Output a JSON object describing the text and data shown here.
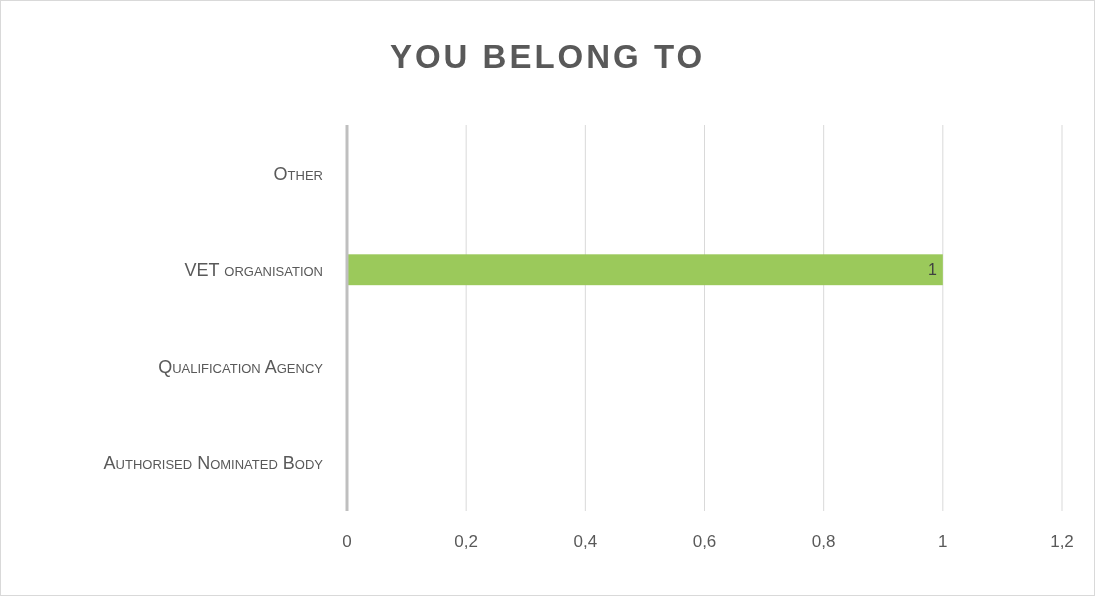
{
  "chart_data": {
    "type": "bar",
    "orientation": "horizontal",
    "title": "YOU BELONG TO",
    "categories": [
      "Other",
      "VET organisation",
      "Qualification Agency",
      "Authorised Nominated Body"
    ],
    "values": [
      0,
      1,
      0,
      0
    ],
    "value_labels": [
      null,
      "1",
      null,
      null
    ],
    "color": "#9bc95b",
    "xlim": [
      0,
      1.2
    ],
    "xticks": [
      0,
      {
        "value": 0.2,
        "label": "0,2"
      },
      {
        "value": 0.4,
        "label": "0,4"
      },
      {
        "value": 0.6,
        "label": "0,6"
      },
      {
        "value": 0.8,
        "label": "0,8"
      },
      1,
      {
        "value": 1.2,
        "label": "1,2"
      }
    ],
    "grid": "x"
  }
}
